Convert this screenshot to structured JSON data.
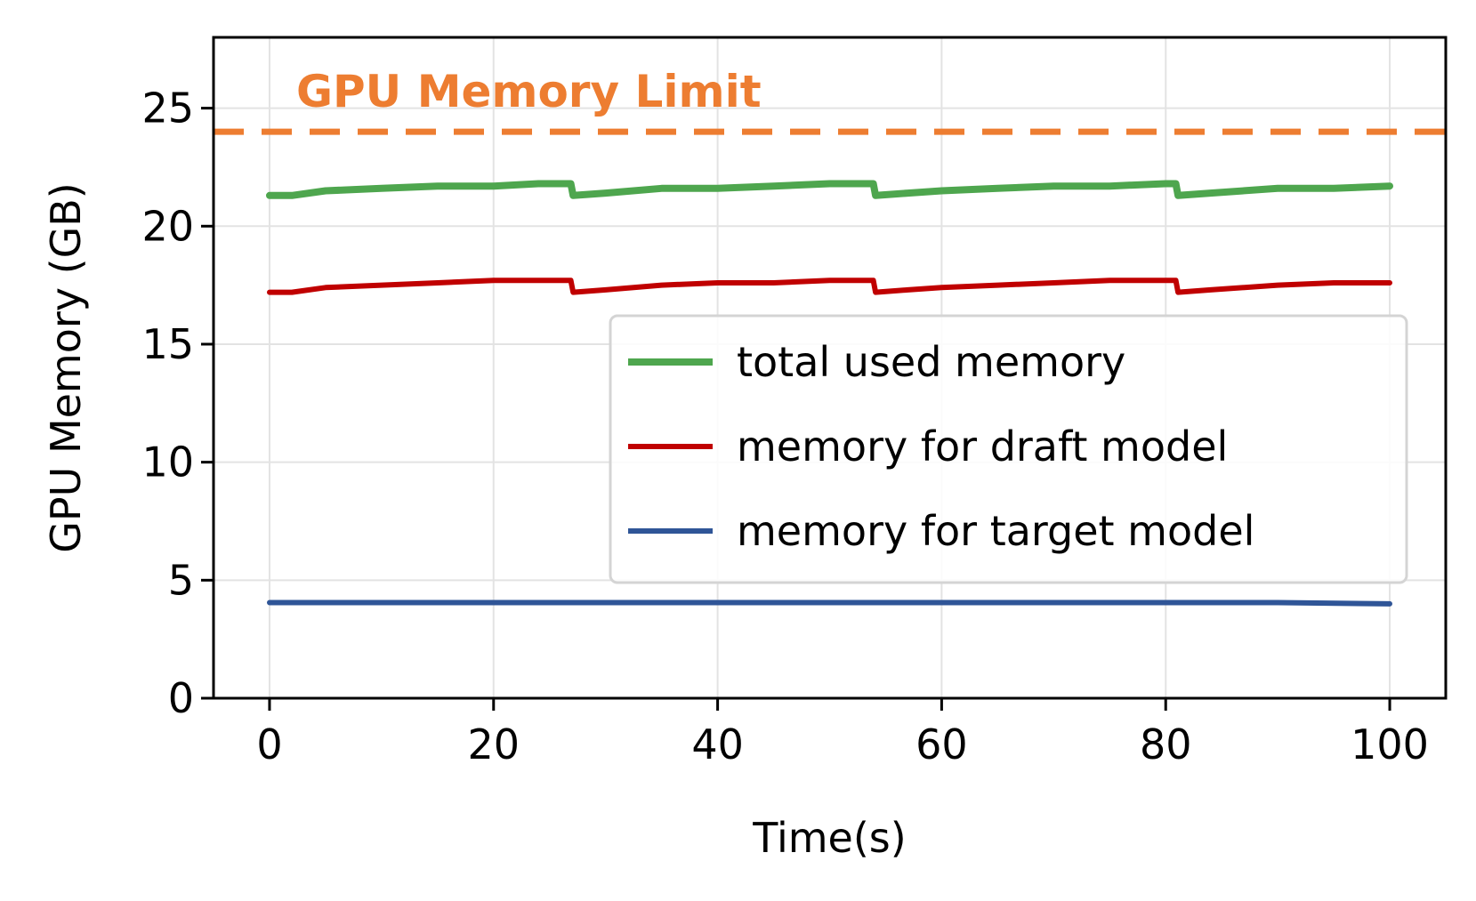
{
  "chart_data": {
    "type": "line",
    "xlabel": "Time(s)",
    "ylabel": "GPU Memory (GB)",
    "xlim": [
      -5,
      105
    ],
    "ylim": [
      0,
      28
    ],
    "xticks": [
      0,
      20,
      40,
      60,
      80,
      100
    ],
    "yticks": [
      0,
      5,
      10,
      15,
      20,
      25
    ],
    "grid": true,
    "legend_position": "center-right",
    "reference_line": {
      "label": "GPU Memory Limit",
      "y": 24,
      "style": "dashed",
      "color": "#ed7d31"
    },
    "series": [
      {
        "name": "total used memory",
        "color": "#4ea64e",
        "x": [
          0,
          2,
          5,
          10,
          15,
          20,
          24,
          26.9,
          27.1,
          30,
          35,
          40,
          45,
          50,
          53.9,
          54.1,
          57,
          60,
          65,
          70,
          75,
          80,
          80.9,
          81.1,
          84,
          90,
          95,
          100
        ],
        "y": [
          21.3,
          21.3,
          21.5,
          21.6,
          21.7,
          21.7,
          21.8,
          21.8,
          21.3,
          21.4,
          21.6,
          21.6,
          21.7,
          21.8,
          21.8,
          21.3,
          21.4,
          21.5,
          21.6,
          21.7,
          21.7,
          21.8,
          21.8,
          21.3,
          21.4,
          21.6,
          21.6,
          21.7
        ]
      },
      {
        "name": "memory for draft model",
        "color": "#c00000",
        "x": [
          0,
          2,
          5,
          10,
          15,
          20,
          24,
          26.9,
          27.1,
          30,
          35,
          40,
          45,
          50,
          53.9,
          54.1,
          57,
          60,
          65,
          70,
          75,
          80,
          80.9,
          81.1,
          84,
          90,
          95,
          100
        ],
        "y": [
          17.2,
          17.2,
          17.4,
          17.5,
          17.6,
          17.7,
          17.7,
          17.7,
          17.2,
          17.3,
          17.5,
          17.6,
          17.6,
          17.7,
          17.7,
          17.2,
          17.3,
          17.4,
          17.5,
          17.6,
          17.7,
          17.7,
          17.7,
          17.2,
          17.3,
          17.5,
          17.6,
          17.6
        ]
      },
      {
        "name": "memory for target model",
        "color": "#2f5597",
        "x": [
          0,
          10,
          20,
          30,
          40,
          50,
          60,
          70,
          80,
          90,
          100
        ],
        "y": [
          4.05,
          4.05,
          4.05,
          4.05,
          4.05,
          4.05,
          4.05,
          4.05,
          4.05,
          4.05,
          4.0
        ]
      }
    ]
  }
}
